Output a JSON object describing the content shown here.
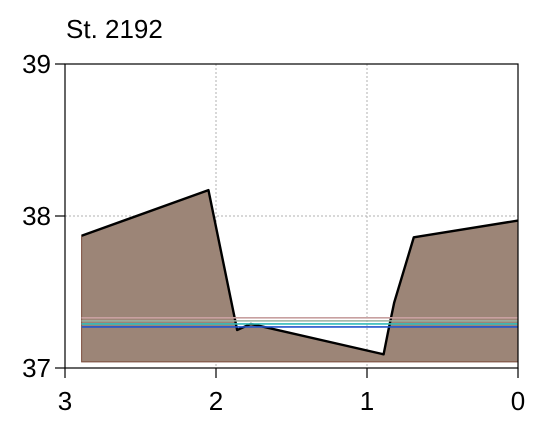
{
  "chart_data": {
    "type": "area",
    "title": "St. 2192",
    "xlabel": "",
    "ylabel": "",
    "xlim": [
      3,
      0
    ],
    "ylim": [
      37,
      39
    ],
    "x_reversed": true,
    "xticks": [
      "3",
      "2",
      "1",
      "0"
    ],
    "xtick_values": [
      3,
      2,
      1,
      0
    ],
    "yticks": [
      "37",
      "38",
      "39"
    ],
    "ytick_values": [
      37,
      38,
      39
    ],
    "grid": true,
    "fill_color": "#9c8577",
    "outline_color": "#000000",
    "baseline": 37.04,
    "profile": {
      "x": [
        2.89,
        2.05,
        1.86,
        1.77,
        0.89,
        0.86,
        0.82,
        0.69,
        0
      ],
      "y": [
        37.87,
        38.17,
        37.25,
        37.29,
        37.09,
        37.24,
        37.43,
        37.86,
        37.97
      ]
    },
    "reference_lines": [
      {
        "y": 37.33,
        "color": "#c8a0a0"
      },
      {
        "y": 37.31,
        "color": "#9bb0a0"
      },
      {
        "y": 37.29,
        "color": "#33bbbb"
      },
      {
        "y": 37.27,
        "color": "#2255cc"
      }
    ]
  }
}
